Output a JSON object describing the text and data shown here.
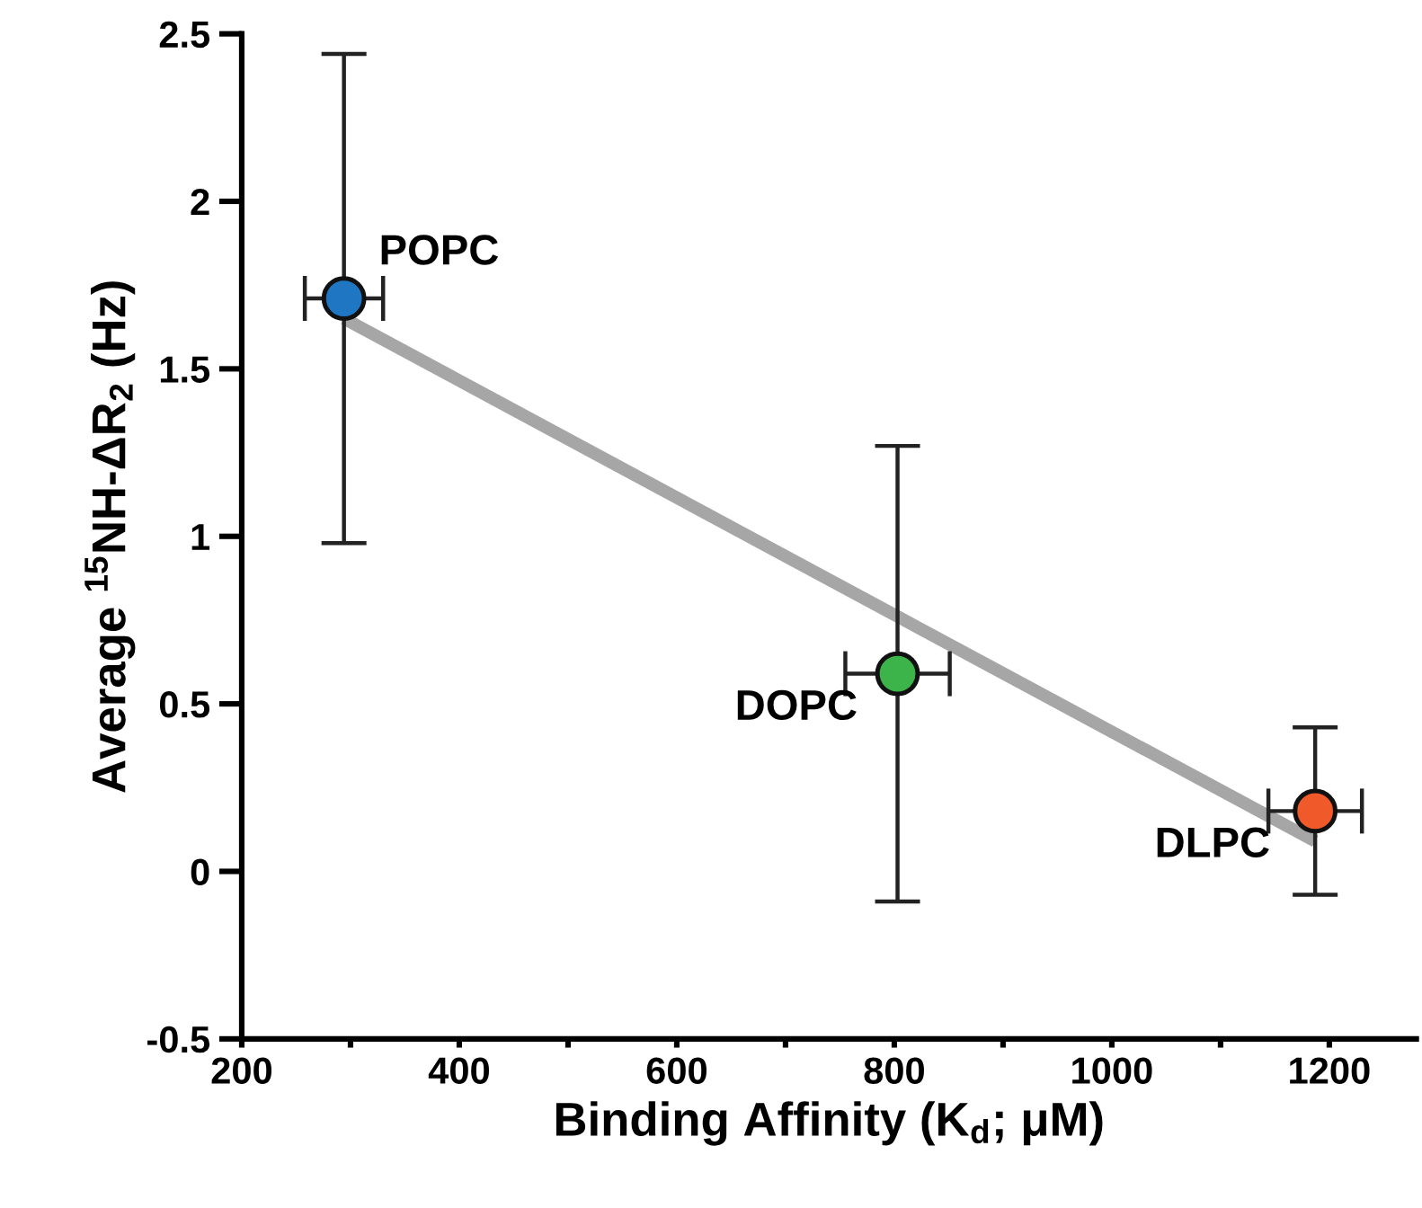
{
  "chart_data": {
    "type": "scatter",
    "xlabel": "Binding Affinity (K$_{d}$; μM)",
    "ylabel": "Average $^{15}$NH-ΔR$_{2}$ (Hz)",
    "xlim": [
      200,
      1280
    ],
    "ylim": [
      -0.5,
      2.5
    ],
    "xticks": [
      200,
      {
        "value": 300,
        "label": null
      },
      400,
      {
        "value": 500,
        "label": null
      },
      600,
      {
        "value": 700,
        "label": null
      },
      800,
      {
        "value": 900,
        "label": null
      },
      1000,
      {
        "value": 1100,
        "label": null
      },
      1200
    ],
    "yticks": [
      -0.5,
      0,
      0.5,
      1,
      1.5,
      2,
      2.5
    ],
    "grid": false,
    "series": [
      {
        "type": "line",
        "color": "#a6a6a6",
        "x": [
          294,
          1187
        ],
        "values": [
          1.65,
          0.09
        ],
        "line_style": "solid",
        "marker": "none"
      },
      {
        "marker": "circle",
        "x": [
          294,
          803,
          1187
        ],
        "values": [
          1.71,
          0.59,
          0.18
        ],
        "colors": [
          "#1f77c4",
          "#3cb44a",
          "#f0592a"
        ],
        "errors": [
          0.73,
          0.68,
          0.25
        ],
        "xerrors": [
          36,
          48,
          43
        ]
      }
    ],
    "annotations": [
      {
        "text": "POPC",
        "x": 294,
        "y": 1.71
      },
      {
        "text": "DOPC",
        "x": 803,
        "y": 0.59
      },
      {
        "text": "DLPC",
        "x": 1187,
        "y": 0.18
      }
    ]
  }
}
